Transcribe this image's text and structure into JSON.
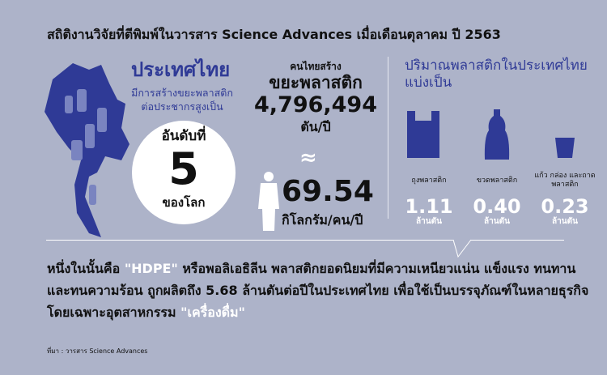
{
  "headline": "สถิติงานวิจัยที่ตีพิมพ์ในวารสาร Science Advances เมื่อเดือนตุลาคม ปี 2563",
  "left": {
    "title": "ประเทศไทย",
    "subtitle": "มีการสร้างขยะพลาสติกต่อประชากรสูงเป็น",
    "rank_label": "อันดับที่",
    "rank": "5",
    "rank_end": "ของโลก"
  },
  "center": {
    "pre": "คนไทยสร้าง",
    "title": "ขยะพลาสติก",
    "total": "4,796,494",
    "total_unit": "ตัน/ปี",
    "approx": "≈",
    "per_capita": "69.54",
    "per_capita_unit": "กิโลกรัม/คน/ปี"
  },
  "right": {
    "title": "ปริมาณพลาสติกในประเทศไทยแบ่งเป็น",
    "items": [
      {
        "label": "ถุงพลาสติก",
        "value": "1.11",
        "unit": "ล้านตัน",
        "icon": "plastic-bag-icon"
      },
      {
        "label": "ขวดพลาสติก",
        "value": "0.40",
        "unit": "ล้านตัน",
        "icon": "bottle-icon"
      },
      {
        "label": "แก้ว กล่อง และถาดพลาสติก",
        "value": "0.23",
        "unit": "ล้านตัน",
        "icon": "cup-icon"
      }
    ]
  },
  "paragraph": {
    "p1": "หนึ่งในนั้นคือ ",
    "hdpe": "\"HDPE\"",
    "p2": " หรือพอลิเอธิลีน พลาสติกยอดนิยมที่มีความเหนียวแน่น แข็งแรง ทนทาน และทนความร้อน ถูกผลิตถึง ",
    "bold": "5.68 ล้านตันต่อปีในประเทศไทย",
    "p3": " เพื่อใช้เป็นบรรจุภัณฑ์ในหลายธุรกิจ โดยเฉพาะอุตสาหกรรม ",
    "drink": "\"เครื่องดื่ม\""
  },
  "source": "ที่มา : วารสาร Science Advances",
  "colors": {
    "background": "#adb3c9",
    "accent": "#2f3a96"
  }
}
